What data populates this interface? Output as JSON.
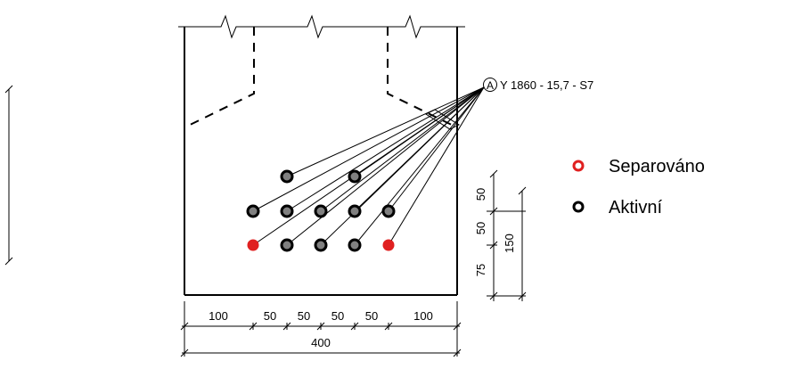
{
  "callout": {
    "marker": "A",
    "label": "Y 1860 - 15,7 - S7"
  },
  "legend": {
    "items": [
      {
        "label": "Separováno",
        "color": "#e02020"
      },
      {
        "label": "Aktivní",
        "color": "#000000"
      }
    ]
  },
  "strands": {
    "separated_color": "#e02020",
    "active_color": "#000000"
  },
  "dimensions": {
    "bottom": [
      "100",
      "50",
      "50",
      "50",
      "50",
      "100"
    ],
    "overall_width": "400",
    "side_spacing": [
      "75",
      "50",
      "50"
    ],
    "total_height": "150"
  }
}
